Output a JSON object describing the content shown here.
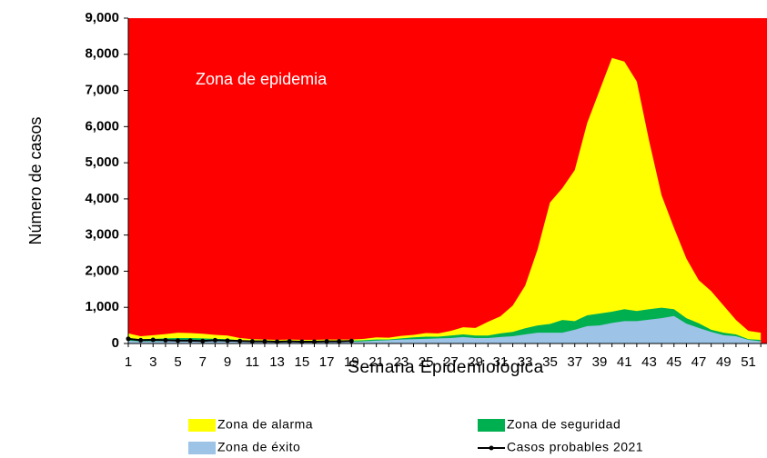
{
  "chart_data": {
    "type": "area",
    "y_label": "Número de casos",
    "x_label": "Semana Epidemiológica",
    "annotation": "Zona de epidemia",
    "background_color": "#ff0000",
    "categories": [
      "1",
      null,
      "3",
      null,
      "5",
      null,
      "7",
      null,
      "9",
      null,
      "11",
      null,
      "13",
      null,
      "15",
      null,
      "17",
      null,
      "19",
      null,
      "21",
      null,
      "23",
      null,
      "25",
      null,
      "27",
      null,
      "29",
      null,
      "31",
      null,
      "33",
      null,
      "35",
      null,
      "37",
      null,
      "39",
      null,
      "41",
      null,
      "43",
      null,
      "45",
      null,
      "47",
      null,
      "49",
      null,
      "51",
      null
    ],
    "series": [
      {
        "name": "Zona de alarma",
        "color": "#ffff00",
        "values": [
          280,
          200,
          230,
          260,
          300,
          290,
          270,
          240,
          220,
          150,
          120,
          110,
          100,
          110,
          100,
          100,
          110,
          110,
          110,
          130,
          170,
          160,
          210,
          240,
          290,
          280,
          350,
          450,
          430,
          600,
          750,
          1050,
          1600,
          2600,
          3900,
          4300,
          4800,
          6100,
          7000,
          7900,
          7800,
          7250,
          5600,
          4100,
          3200,
          2350,
          1750,
          1450,
          1050,
          650,
          350,
          300
        ]
      },
      {
        "name": "Zona de seguridad",
        "color": "#00b050",
        "values": [
          150,
          120,
          130,
          140,
          150,
          150,
          140,
          130,
          120,
          90,
          80,
          70,
          70,
          70,
          70,
          70,
          70,
          80,
          80,
          90,
          110,
          110,
          140,
          170,
          190,
          190,
          220,
          250,
          220,
          220,
          280,
          320,
          420,
          500,
          540,
          650,
          620,
          780,
          830,
          880,
          950,
          900,
          950,
          990,
          950,
          700,
          560,
          380,
          300,
          250,
          120,
          100
        ]
      },
      {
        "name": "Zona de éxito",
        "color": "#9dc3e6",
        "values": [
          80,
          60,
          60,
          70,
          70,
          70,
          60,
          60,
          60,
          50,
          40,
          40,
          40,
          40,
          40,
          40,
          40,
          50,
          50,
          60,
          80,
          90,
          110,
          120,
          130,
          140,
          150,
          180,
          150,
          150,
          180,
          200,
          250,
          300,
          300,
          300,
          380,
          480,
          500,
          570,
          620,
          620,
          660,
          700,
          760,
          550,
          430,
          320,
          230,
          200,
          100,
          60
        ]
      },
      {
        "name": "Casos probables 2021",
        "color": "#000000",
        "line": true,
        "values": [
          130,
          90,
          100,
          90,
          80,
          80,
          70,
          90,
          80,
          70,
          60,
          60,
          50,
          60,
          50,
          50,
          60,
          60,
          70,
          null,
          null,
          null,
          null,
          null,
          null,
          null,
          null,
          null,
          null,
          null,
          null,
          null,
          null,
          null,
          null,
          null,
          null,
          null,
          null,
          null,
          null,
          null,
          null,
          null,
          null,
          null,
          null,
          null,
          null,
          null,
          null,
          null
        ]
      }
    ],
    "ylim": [
      0,
      9000
    ],
    "yticks": [
      0,
      {
        "value": 1000,
        "label": "1,000"
      },
      {
        "value": 2000,
        "label": "2,000"
      },
      {
        "value": 3000,
        "label": "3,000"
      },
      {
        "value": 4000,
        "label": "4,000"
      },
      {
        "value": 5000,
        "label": "5,000"
      },
      {
        "value": 6000,
        "label": "6,000"
      },
      {
        "value": 7000,
        "label": "7,000"
      },
      {
        "value": 8000,
        "label": "8,000"
      },
      {
        "value": 9000,
        "label": "9,000"
      }
    ]
  }
}
